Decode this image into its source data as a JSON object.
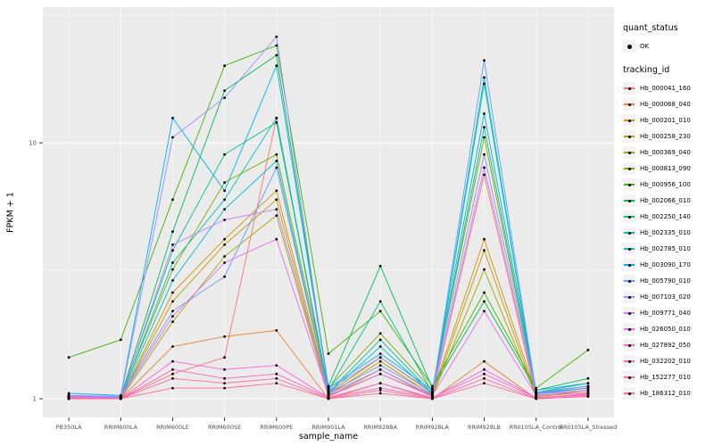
{
  "chart_data": {
    "type": "line",
    "title": "",
    "xlabel": "sample_name",
    "ylabel": "FPKM + 1",
    "y_scale": "log10",
    "ylim": [
      0.845,
      33.9
    ],
    "y_ticks": [
      {
        "value": 1,
        "label": "1"
      },
      {
        "value": 10,
        "label": "10"
      }
    ],
    "y_minor": [
      3.162,
      31.62
    ],
    "panel_bg": "#EBEBEB",
    "grid_color": "#FFFFFF",
    "point_color": "#000000",
    "tick_color": "#333333",
    "tick_label_color": "#4D4D4D",
    "categories": [
      "PB350LA",
      "RRIM600LA",
      "RRIM600LE",
      "RRIM600SE",
      "RRIM600PE",
      "RRIM901LA",
      "RRIM928BA",
      "RRIM928LA",
      "RRIM928LB",
      "RRII105LA_Control",
      "RRII105LA_Stressed"
    ],
    "series": [
      {
        "name": "Hb_000041_160",
        "color": "#F8766D",
        "values": [
          1.02,
          1.0,
          1.25,
          1.45,
          12.5,
          1.02,
          1.25,
          1.02,
          7.5,
          1.02,
          1.08
        ]
      },
      {
        "name": "Hb_000068_040",
        "color": "#EA8331",
        "values": [
          1.0,
          1.0,
          1.6,
          1.75,
          1.85,
          1.0,
          1.15,
          1.0,
          1.4,
          1.0,
          1.05
        ]
      },
      {
        "name": "Hb_000201_010",
        "color": "#D89000",
        "values": [
          1.01,
          1.0,
          2.6,
          4.2,
          6.5,
          1.05,
          1.45,
          1.05,
          4.2,
          1.05,
          1.1
        ]
      },
      {
        "name": "Hb_000258_230",
        "color": "#C09B00",
        "values": [
          1.0,
          1.01,
          2.4,
          4.0,
          6.0,
          1.03,
          1.4,
          1.03,
          3.8,
          1.02,
          1.08
        ]
      },
      {
        "name": "Hb_000369_040",
        "color": "#A3A500",
        "values": [
          1.0,
          1.0,
          2.0,
          3.6,
          5.2,
          1.02,
          1.3,
          1.02,
          3.2,
          1.02,
          1.06
        ]
      },
      {
        "name": "Hb_000813_090",
        "color": "#7CAE00",
        "values": [
          1.02,
          1.02,
          3.2,
          7.0,
          9.0,
          1.1,
          1.8,
          1.08,
          10.5,
          1.06,
          1.12
        ]
      },
      {
        "name": "Hb_000956_100",
        "color": "#39B600",
        "values": [
          1.45,
          1.7,
          6.0,
          20.0,
          24.0,
          1.5,
          2.2,
          1.12,
          2.6,
          1.1,
          1.55
        ]
      },
      {
        "name": "Hb_002066_010",
        "color": "#00BB4E",
        "values": [
          1.03,
          1.02,
          4.5,
          16.0,
          22.0,
          1.12,
          3.3,
          1.1,
          2.4,
          1.08,
          1.2
        ]
      },
      {
        "name": "Hb_002250_140",
        "color": "#00C087",
        "values": [
          1.02,
          1.02,
          3.8,
          9.0,
          12.0,
          1.08,
          2.4,
          1.06,
          11.5,
          1.06,
          1.15
        ]
      },
      {
        "name": "Hb_002335_010",
        "color": "#00C0B4",
        "values": [
          1.01,
          1.01,
          3.4,
          6.0,
          12.5,
          1.06,
          1.7,
          1.05,
          17.0,
          1.05,
          1.12
        ]
      },
      {
        "name": "Hb_002785_010",
        "color": "#00BCD8",
        "values": [
          1.02,
          1.01,
          2.9,
          5.5,
          8.5,
          1.05,
          1.6,
          1.04,
          18.0,
          1.04,
          1.1
        ]
      },
      {
        "name": "Hb_003090_170",
        "color": "#00B0F6",
        "values": [
          1.05,
          1.03,
          12.5,
          6.5,
          20.0,
          1.1,
          1.5,
          1.08,
          13.0,
          1.08,
          1.15
        ]
      },
      {
        "name": "Hb_005790_010",
        "color": "#619CFF",
        "values": [
          1.02,
          1.02,
          2.2,
          3.0,
          8.0,
          1.05,
          1.35,
          1.04,
          21.0,
          1.05,
          1.1
        ]
      },
      {
        "name": "Hb_007103_020",
        "color": "#9590FF",
        "values": [
          1.03,
          1.02,
          10.5,
          15.0,
          26.0,
          1.08,
          1.45,
          1.06,
          9.0,
          1.06,
          1.12
        ]
      },
      {
        "name": "Hb_009771_040",
        "color": "#C77CFF",
        "values": [
          1.01,
          1.01,
          4.0,
          5.0,
          5.5,
          1.04,
          1.3,
          1.03,
          8.0,
          1.04,
          1.08
        ]
      },
      {
        "name": "Hb_026050_010",
        "color": "#E76BF3",
        "values": [
          1.02,
          1.01,
          2.1,
          3.4,
          4.2,
          1.03,
          1.25,
          1.03,
          2.2,
          1.03,
          1.06
        ]
      },
      {
        "name": "Hb_027892_050",
        "color": "#FA62DB",
        "values": [
          1.01,
          1.0,
          1.4,
          1.3,
          1.35,
          1.01,
          1.15,
          1.01,
          1.3,
          1.01,
          1.04
        ]
      },
      {
        "name": "Hb_032202_010",
        "color": "#FF61C3",
        "values": [
          1.0,
          1.0,
          1.3,
          1.2,
          1.25,
          1.01,
          1.1,
          1.01,
          1.25,
          1.01,
          1.03
        ]
      },
      {
        "name": "Hb_152277_010",
        "color": "#FF68A1",
        "values": [
          1.01,
          1.0,
          1.2,
          1.15,
          1.2,
          1.0,
          1.08,
          1.0,
          1.2,
          1.0,
          1.02
        ]
      },
      {
        "name": "Hb_186312_010",
        "color": "#FF6C92",
        "values": [
          1.0,
          1.0,
          1.1,
          1.1,
          1.15,
          1.0,
          1.05,
          1.0,
          1.15,
          1.0,
          1.02
        ]
      }
    ]
  },
  "legend": {
    "quant_status": {
      "title": "quant_status",
      "items": [
        {
          "label": "OK",
          "symbol": "point"
        }
      ]
    },
    "tracking": {
      "title": "tracking_id"
    }
  }
}
